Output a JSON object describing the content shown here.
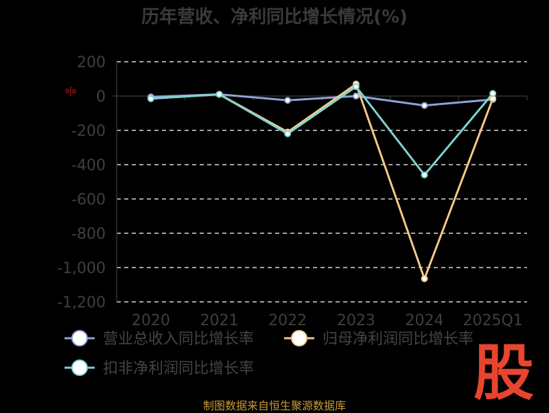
{
  "title": "历年营收、净利同比增长情况(%)",
  "source": "制图数据来自恒生聚源数据库",
  "logo_text": "股",
  "chart_data": {
    "type": "line",
    "categories": [
      "2020",
      "2021",
      "2022",
      "2023",
      "2024",
      "2025Q1"
    ],
    "ylim": [
      -1200,
      200
    ],
    "yticks": [
      200,
      0,
      -200,
      -400,
      -600,
      -800,
      -1000,
      -1200
    ],
    "ytick_labels": [
      "200",
      "0",
      "-200",
      "-400",
      "-600",
      "-800",
      "-1,000",
      "-1,200"
    ],
    "y_unit_symbol": "%",
    "grid": true,
    "legend_position": "bottom",
    "series": [
      {
        "name": "营业总收入同比增长率",
        "color": "#8fa3d4",
        "values": [
          -5,
          10,
          -25,
          0,
          -55,
          -20
        ]
      },
      {
        "name": "归母净利润同比增长率",
        "color": "#f5c98a",
        "values": [
          -15,
          10,
          -210,
          70,
          -1065,
          -15
        ]
      },
      {
        "name": "扣非净利润同比增长率",
        "color": "#7fd3d3",
        "values": [
          -15,
          10,
          -220,
          55,
          -460,
          15
        ]
      }
    ]
  }
}
